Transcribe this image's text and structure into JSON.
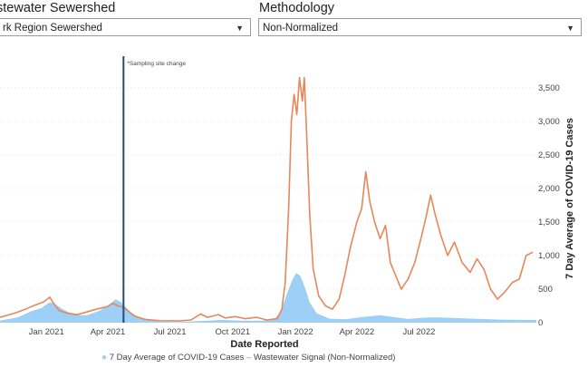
{
  "filters": {
    "sewershed": {
      "label": "stewater Sewershed",
      "value": "rk Region Sewershed"
    },
    "methodology": {
      "label": "Methodology",
      "value": "Non-Normalized"
    }
  },
  "legend": {
    "cases": "7 Day Average of COVID-19 Cases",
    "signal": "Wastewater Signal (Non-Normalized)"
  },
  "chart_data": {
    "type": "line",
    "xlabel": "Date Reported",
    "ylabel": "7 Day Average of COVID-19 Cases",
    "y_ticks": [
      "0",
      "500",
      "1,000",
      "1,500",
      "2,000",
      "2,500",
      "3,000",
      "3,500"
    ],
    "y_tick_values": [
      0,
      500,
      1000,
      1500,
      2000,
      2500,
      3000,
      3500
    ],
    "ylim": [
      0,
      3700
    ],
    "xlim": [
      "2020-10-25",
      "2022-12-20"
    ],
    "x_ticks": [
      {
        "label": "Jan 2021",
        "date": "2021-01-01"
      },
      {
        "label": "Apr 2021",
        "date": "2021-04-01"
      },
      {
        "label": "Jul 2021",
        "date": "2021-07-01"
      },
      {
        "label": "Oct 2021",
        "date": "2021-10-01"
      },
      {
        "label": "Jan 2022",
        "date": "2022-01-01"
      },
      {
        "label": "Apr 2022",
        "date": "2022-04-01"
      },
      {
        "label": "Jul 2022",
        "date": "2022-07-01"
      }
    ],
    "annotation": {
      "text": "*Sampling site change",
      "date": "2021-04-24"
    },
    "grid": true,
    "series": [
      {
        "name": "7 Day Average of COVID-19 Cases",
        "kind": "area",
        "color": "#9ecff5",
        "points": [
          [
            "2020-10-25",
            30
          ],
          [
            "2020-11-20",
            80
          ],
          [
            "2020-12-10",
            170
          ],
          [
            "2020-12-25",
            220
          ],
          [
            "2021-01-05",
            300
          ],
          [
            "2021-01-12",
            290
          ],
          [
            "2021-01-25",
            200
          ],
          [
            "2021-02-10",
            120
          ],
          [
            "2021-03-01",
            110
          ],
          [
            "2021-03-20",
            180
          ],
          [
            "2021-04-05",
            280
          ],
          [
            "2021-04-12",
            350
          ],
          [
            "2021-04-20",
            310
          ],
          [
            "2021-05-05",
            150
          ],
          [
            "2021-05-20",
            60
          ],
          [
            "2021-06-15",
            15
          ],
          [
            "2021-07-15",
            10
          ],
          [
            "2021-08-15",
            25
          ],
          [
            "2021-09-15",
            40
          ],
          [
            "2021-10-15",
            30
          ],
          [
            "2021-11-15",
            30
          ],
          [
            "2021-12-01",
            50
          ],
          [
            "2021-12-10",
            150
          ],
          [
            "2021-12-20",
            450
          ],
          [
            "2021-12-28",
            650
          ],
          [
            "2022-01-02",
            740
          ],
          [
            "2022-01-08",
            700
          ],
          [
            "2022-01-15",
            520
          ],
          [
            "2022-01-22",
            300
          ],
          [
            "2022-02-01",
            140
          ],
          [
            "2022-02-20",
            60
          ],
          [
            "2022-03-15",
            50
          ],
          [
            "2022-04-15",
            90
          ],
          [
            "2022-05-05",
            110
          ],
          [
            "2022-05-20",
            90
          ],
          [
            "2022-06-15",
            55
          ],
          [
            "2022-07-10",
            75
          ],
          [
            "2022-07-25",
            80
          ],
          [
            "2022-08-20",
            70
          ],
          [
            "2022-09-30",
            55
          ],
          [
            "2022-11-01",
            45
          ],
          [
            "2022-12-20",
            40
          ]
        ]
      },
      {
        "name": "Wastewater Signal (Non-Normalized)",
        "kind": "line",
        "color": "#e6875a",
        "points": [
          [
            "2020-10-25",
            80
          ],
          [
            "2020-11-15",
            140
          ],
          [
            "2020-12-01",
            200
          ],
          [
            "2020-12-15",
            260
          ],
          [
            "2020-12-28",
            310
          ],
          [
            "2021-01-06",
            380
          ],
          [
            "2021-01-12",
            280
          ],
          [
            "2021-01-20",
            180
          ],
          [
            "2021-02-01",
            140
          ],
          [
            "2021-02-15",
            120
          ],
          [
            "2021-03-01",
            160
          ],
          [
            "2021-03-15",
            200
          ],
          [
            "2021-04-01",
            240
          ],
          [
            "2021-04-08",
            290
          ],
          [
            "2021-04-16",
            250
          ],
          [
            "2021-04-24",
            230
          ],
          [
            "2021-05-10",
            100
          ],
          [
            "2021-05-25",
            50
          ],
          [
            "2021-06-15",
            30
          ],
          [
            "2021-07-15",
            25
          ],
          [
            "2021-08-01",
            40
          ],
          [
            "2021-08-15",
            130
          ],
          [
            "2021-08-25",
            80
          ],
          [
            "2021-09-10",
            120
          ],
          [
            "2021-09-20",
            70
          ],
          [
            "2021-10-05",
            90
          ],
          [
            "2021-10-20",
            60
          ],
          [
            "2021-11-05",
            80
          ],
          [
            "2021-11-20",
            40
          ],
          [
            "2021-12-05",
            60
          ],
          [
            "2021-12-12",
            200
          ],
          [
            "2021-12-17",
            600
          ],
          [
            "2021-12-22",
            1700
          ],
          [
            "2021-12-26",
            3000
          ],
          [
            "2021-12-30",
            3400
          ],
          [
            "2022-01-03",
            3100
          ],
          [
            "2022-01-07",
            3650
          ],
          [
            "2022-01-11",
            3300
          ],
          [
            "2022-01-14",
            3650
          ],
          [
            "2022-01-17",
            2900
          ],
          [
            "2022-01-22",
            1600
          ],
          [
            "2022-01-27",
            800
          ],
          [
            "2022-02-04",
            400
          ],
          [
            "2022-02-14",
            250
          ],
          [
            "2022-02-24",
            200
          ],
          [
            "2022-03-06",
            350
          ],
          [
            "2022-03-14",
            700
          ],
          [
            "2022-03-22",
            1100
          ],
          [
            "2022-04-01",
            1500
          ],
          [
            "2022-04-08",
            1700
          ],
          [
            "2022-04-14",
            2250
          ],
          [
            "2022-04-20",
            1800
          ],
          [
            "2022-04-27",
            1500
          ],
          [
            "2022-05-05",
            1250
          ],
          [
            "2022-05-13",
            1450
          ],
          [
            "2022-05-20",
            900
          ],
          [
            "2022-05-28",
            700
          ],
          [
            "2022-06-05",
            500
          ],
          [
            "2022-06-15",
            650
          ],
          [
            "2022-06-25",
            900
          ],
          [
            "2022-07-05",
            1300
          ],
          [
            "2022-07-12",
            1600
          ],
          [
            "2022-07-18",
            1900
          ],
          [
            "2022-07-25",
            1600
          ],
          [
            "2022-08-02",
            1300
          ],
          [
            "2022-08-12",
            1000
          ],
          [
            "2022-08-22",
            1200
          ],
          [
            "2022-09-02",
            900
          ],
          [
            "2022-09-14",
            750
          ],
          [
            "2022-09-24",
            950
          ],
          [
            "2022-10-04",
            800
          ],
          [
            "2022-10-14",
            500
          ],
          [
            "2022-10-24",
            350
          ],
          [
            "2022-11-03",
            450
          ],
          [
            "2022-11-15",
            600
          ],
          [
            "2022-11-25",
            650
          ],
          [
            "2022-12-05",
            1000
          ],
          [
            "2022-12-15",
            1050
          ]
        ]
      }
    ]
  }
}
